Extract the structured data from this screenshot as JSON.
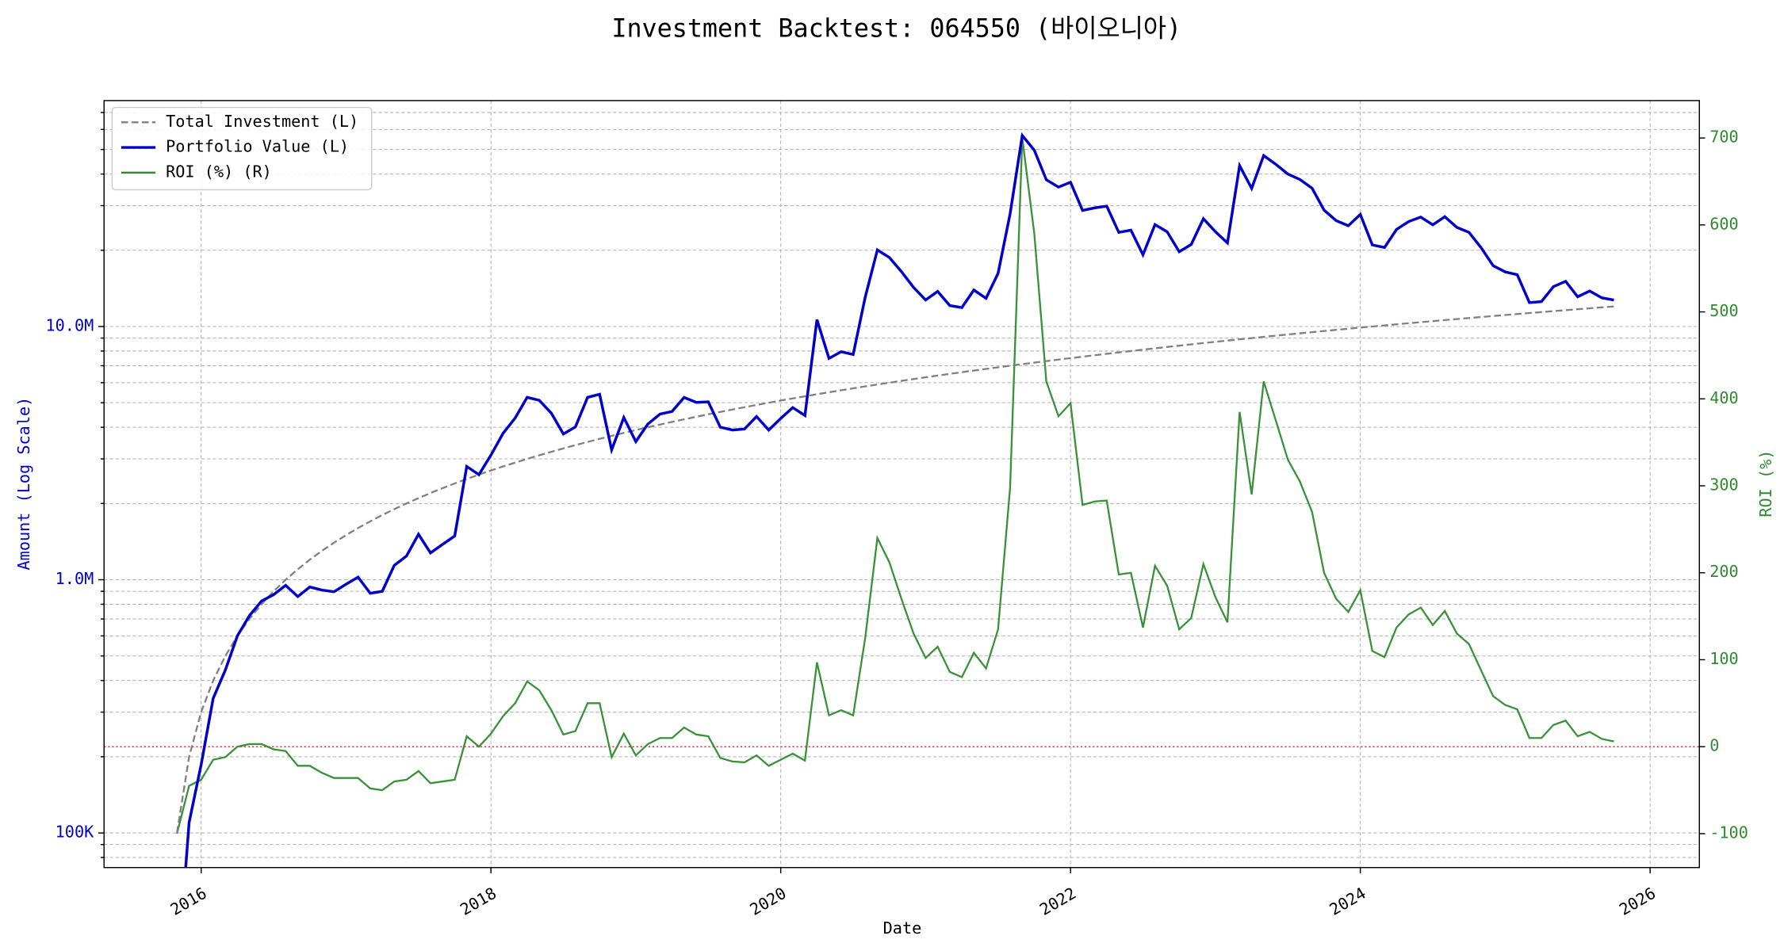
{
  "chart_data": {
    "type": "line",
    "title": "Investment Backtest: 064550 (바이오니아)",
    "xlabel": "Date",
    "ylabel": "Amount (Log Scale)",
    "y2label": "ROI (%)",
    "yscale": "log",
    "grid": true,
    "legend": "upper left",
    "xlim": [
      2015.33,
      2026.34
    ],
    "xticks": [
      {
        "value": 2016,
        "label": "2016"
      },
      {
        "value": 2018,
        "label": "2018"
      },
      {
        "value": 2020,
        "label": "2020"
      },
      {
        "value": 2022,
        "label": "2022"
      },
      {
        "value": 2024,
        "label": "2024"
      },
      {
        "value": 2026,
        "label": "2026"
      }
    ],
    "ylim": [
      73000,
      78000000
    ],
    "yticks": [
      {
        "value": 100000,
        "label": "100K"
      },
      {
        "value": 1000000,
        "label": "1.0M"
      },
      {
        "value": 10000000,
        "label": "10.0M"
      }
    ],
    "yminorticks": [
      80000,
      90000,
      200000,
      300000,
      400000,
      500000,
      600000,
      700000,
      800000,
      900000,
      2000000,
      3000000,
      4000000,
      5000000,
      6000000,
      7000000,
      8000000,
      9000000,
      20000000,
      30000000,
      40000000,
      50000000,
      60000000,
      70000000
    ],
    "y2lim": [
      -139,
      743
    ],
    "y2ticks": [
      -100,
      0,
      100,
      200,
      300,
      400,
      500,
      600,
      700
    ],
    "reference_line": {
      "axis": "y2",
      "value": 0,
      "color": "#d62728"
    },
    "x": [
      2015.833,
      2015.917,
      2016.0,
      2016.083,
      2016.167,
      2016.25,
      2016.333,
      2016.417,
      2016.5,
      2016.583,
      2016.667,
      2016.75,
      2016.833,
      2016.917,
      2017.0,
      2017.083,
      2017.167,
      2017.25,
      2017.333,
      2017.417,
      2017.5,
      2017.583,
      2017.667,
      2017.75,
      2017.833,
      2017.917,
      2018.0,
      2018.083,
      2018.167,
      2018.25,
      2018.333,
      2018.417,
      2018.5,
      2018.583,
      2018.667,
      2018.75,
      2018.833,
      2018.917,
      2019.0,
      2019.083,
      2019.167,
      2019.25,
      2019.333,
      2019.417,
      2019.5,
      2019.583,
      2019.667,
      2019.75,
      2019.833,
      2019.917,
      2020.0,
      2020.083,
      2020.167,
      2020.25,
      2020.333,
      2020.417,
      2020.5,
      2020.583,
      2020.667,
      2020.75,
      2020.833,
      2020.917,
      2021.0,
      2021.083,
      2021.167,
      2021.25,
      2021.333,
      2021.417,
      2021.5,
      2021.583,
      2021.667,
      2021.75,
      2021.833,
      2021.917,
      2022.0,
      2022.083,
      2022.167,
      2022.25,
      2022.333,
      2022.417,
      2022.5,
      2022.583,
      2022.667,
      2022.75,
      2022.833,
      2022.917,
      2023.0,
      2023.083,
      2023.167,
      2023.25,
      2023.333,
      2023.417,
      2023.5,
      2023.583,
      2023.667,
      2023.75,
      2023.833,
      2023.917,
      2024.0,
      2024.083,
      2024.167,
      2024.25,
      2024.333,
      2024.417,
      2024.5,
      2024.583,
      2024.667,
      2024.75,
      2024.833,
      2024.917,
      2025.0,
      2025.083,
      2025.167,
      2025.25,
      2025.333,
      2025.417,
      2025.5,
      2025.583,
      2025.667,
      2025.75
    ],
    "series": [
      {
        "name": "Total Investment (L)",
        "color": "#808080",
        "dash": "dashed",
        "axis": "y",
        "values": [
          100000,
          200000,
          300000,
          400000,
          500000,
          600000,
          700000,
          800000,
          900000,
          1000000,
          1100000,
          1200000,
          1300000,
          1400000,
          1500000,
          1600000,
          1700000,
          1800000,
          1900000,
          2000000,
          2100000,
          2200000,
          2300000,
          2400000,
          2500000,
          2600000,
          2700000,
          2800000,
          2900000,
          3000000,
          3100000,
          3200000,
          3300000,
          3400000,
          3500000,
          3600000,
          3700000,
          3800000,
          3900000,
          4000000,
          4100000,
          4200000,
          4300000,
          4400000,
          4500000,
          4600000,
          4700000,
          4800000,
          4900000,
          5000000,
          5100000,
          5200000,
          5300000,
          5400000,
          5500000,
          5600000,
          5700000,
          5800000,
          5900000,
          6000000,
          6100000,
          6200000,
          6300000,
          6400000,
          6500000,
          6600000,
          6700000,
          6800000,
          6900000,
          7000000,
          7100000,
          7200000,
          7300000,
          7400000,
          7500000,
          7600000,
          7700000,
          7800000,
          7900000,
          8000000,
          8100000,
          8200000,
          8300000,
          8400000,
          8500000,
          8600000,
          8700000,
          8800000,
          8900000,
          9000000,
          9100000,
          9200000,
          9300000,
          9400000,
          9500000,
          9600000,
          9700000,
          9800000,
          9900000,
          10000000,
          10100000,
          10200000,
          10300000,
          10400000,
          10500000,
          10600000,
          10700000,
          10800000,
          10900000,
          11000000,
          11100000,
          11200000,
          11300000,
          11400000,
          11500000,
          11600000,
          11700000,
          11800000,
          11900000,
          12000000
        ]
      },
      {
        "name": "Portfolio Value (L)",
        "color": "#0000cd",
        "dash": "solid",
        "axis": "y",
        "values": [
          0,
          110000,
          186000,
          340000,
          440000,
          600000,
          721000,
          824000,
          873000,
          950000,
          858000,
          936000,
          910000,
          896000,
          960000,
          1024000,
          884000,
          900000,
          1140000,
          1240000,
          1512000,
          1276000,
          1380000,
          1488000,
          2800000,
          2600000,
          3105000,
          3780000,
          4350000,
          5250000,
          5115000,
          4544000,
          3762000,
          4012000,
          5250000,
          5400000,
          3256000,
          4370000,
          3510000,
          4120000,
          4510000,
          4620000,
          5246000,
          5016000,
          5040000,
          4002000,
          3901000,
          3936000,
          4410000,
          3900000,
          4335000,
          4784000,
          4452000,
          10638000,
          7480000,
          7952000,
          7752000,
          13050000,
          20060000,
          18720000,
          16470000,
          14260000,
          12726000,
          13760000,
          12090000,
          11880000,
          13936000,
          12920000,
          16215000,
          27860000,
          56800000,
          49680000,
          37960000,
          35520000,
          37125000,
          28728000,
          29414000,
          29874000,
          23542000,
          24000000,
          19197000,
          25256000,
          23655000,
          19740000,
          21080000,
          26660000,
          23664000,
          21384000,
          43165000,
          35100000,
          47320000,
          43700000,
          39990000,
          38070000,
          35150000,
          28800000,
          26190000,
          24990000,
          27720000,
          21000000,
          20503000,
          24174000,
          25956000,
          27040000,
          25200000,
          27136000,
          24610000,
          23544000,
          20492000,
          17380000,
          16428000,
          16016000,
          12430000,
          12540000,
          14375000,
          15080000,
          13104000,
          13806000,
          12971000,
          12720000
        ]
      },
      {
        "name": "ROI (%) (R)",
        "color": "#2e8b2e",
        "dash": "solid",
        "axis": "y2",
        "values": [
          -100,
          -45,
          -38,
          -15,
          -12,
          0,
          3,
          3,
          -3,
          -5,
          -22,
          -22,
          -30,
          -36,
          -36,
          -36,
          -48,
          -50,
          -40,
          -38,
          -28,
          -42,
          -40,
          -38,
          12,
          0,
          15,
          35,
          50,
          75,
          65,
          42,
          14,
          18,
          50,
          50,
          -12,
          15,
          -10,
          3,
          10,
          10,
          22,
          14,
          12,
          -13,
          -17,
          -18,
          -10,
          -22,
          -15,
          -8,
          -16,
          97,
          36,
          42,
          36,
          125,
          240,
          212,
          170,
          130,
          102,
          115,
          86,
          80,
          108,
          90,
          135,
          298,
          700,
          590,
          420,
          380,
          395,
          278,
          282,
          283,
          198,
          200,
          137,
          208,
          185,
          135,
          148,
          210,
          172,
          143,
          385,
          290,
          420,
          375,
          330,
          305,
          270,
          200,
          170,
          155,
          180,
          110,
          103,
          137,
          152,
          160,
          140,
          156,
          130,
          118,
          88,
          58,
          48,
          43,
          10,
          10,
          25,
          30,
          12,
          17,
          9,
          6
        ]
      }
    ]
  }
}
